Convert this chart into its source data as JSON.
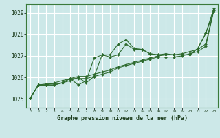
{
  "background_color": "#cce8e8",
  "grid_color": "#ffffff",
  "line_color": "#2d6a2d",
  "xlabel": "Graphe pression niveau de la mer (hPa)",
  "ylim": [
    1024.6,
    1029.4
  ],
  "xlim": [
    -0.5,
    23.5
  ],
  "yticks": [
    1025,
    1026,
    1027,
    1028,
    1029
  ],
  "xticks": [
    0,
    1,
    2,
    3,
    4,
    5,
    6,
    7,
    8,
    9,
    10,
    11,
    12,
    13,
    14,
    15,
    16,
    17,
    18,
    19,
    20,
    21,
    22,
    23
  ],
  "series": [
    [
      1025.05,
      1025.65,
      1025.7,
      1025.7,
      1025.75,
      1025.85,
      1026.0,
      1025.75,
      1026.05,
      1027.05,
      1026.95,
      1027.05,
      1027.55,
      1027.3,
      1027.3,
      1027.1,
      1027.05,
      1027.1,
      1027.05,
      1027.05,
      1027.05,
      1027.35,
      1028.05,
      1029.05
    ],
    [
      1025.05,
      1025.65,
      1025.65,
      1025.75,
      1025.85,
      1025.95,
      1026.05,
      1026.05,
      1026.15,
      1026.25,
      1026.35,
      1026.5,
      1026.6,
      1026.7,
      1026.8,
      1026.9,
      1027.0,
      1027.05,
      1027.05,
      1027.1,
      1027.2,
      1027.3,
      1027.55,
      1029.15
    ],
    [
      1025.05,
      1025.65,
      1025.65,
      1025.65,
      1025.75,
      1025.95,
      1025.65,
      1025.85,
      1026.9,
      1027.05,
      1027.05,
      1027.55,
      1027.75,
      1027.35,
      1027.3,
      1027.1,
      1027.05,
      1027.05,
      1027.05,
      1027.05,
      1027.05,
      1027.35,
      1028.05,
      1029.2
    ],
    [
      1025.05,
      1025.65,
      1025.65,
      1025.65,
      1025.75,
      1025.95,
      1025.95,
      1025.95,
      1026.05,
      1026.15,
      1026.25,
      1026.45,
      1026.55,
      1026.65,
      1026.75,
      1026.85,
      1026.95,
      1026.95,
      1026.95,
      1027.0,
      1027.1,
      1027.2,
      1027.45,
      1029.1
    ]
  ]
}
